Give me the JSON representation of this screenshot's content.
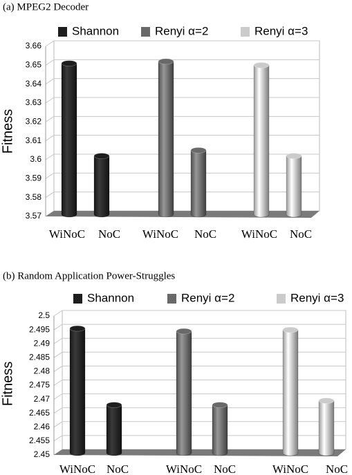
{
  "chart_data": [
    {
      "type": "bar",
      "title": "(a) MPEG2 Decoder",
      "ylabel": "Fitness",
      "categories": [
        "WiNoC",
        "NoC"
      ],
      "series": [
        {
          "name": "Shannon",
          "color": "#1e1e1e",
          "values": [
            3.651,
            3.602
          ]
        },
        {
          "name": "Renyi α=2",
          "color": "#696969",
          "values": [
            3.652,
            3.605
          ]
        },
        {
          "name": "Renyi α=3",
          "color": "#cbcbcb",
          "values": [
            3.65,
            3.602
          ]
        }
      ],
      "ylim": [
        3.57,
        3.66
      ],
      "yticks": [
        3.57,
        3.58,
        3.59,
        3.6,
        3.61,
        3.62,
        3.63,
        3.64,
        3.65,
        3.66
      ],
      "grid": true
    },
    {
      "type": "bar",
      "title": "(b) Random Application Power-Struggles",
      "ylabel": "Fitness",
      "categories": [
        "WiNoC",
        "NoC"
      ],
      "series": [
        {
          "name": "Shannon",
          "color": "#1e1e1e",
          "values": [
            2.4955,
            2.468
          ]
        },
        {
          "name": "Renyi α=2",
          "color": "#696969",
          "values": [
            2.4945,
            2.468
          ]
        },
        {
          "name": "Renyi α=3",
          "color": "#cbcbcb",
          "values": [
            2.495,
            2.4695
          ]
        }
      ],
      "ylim": [
        2.45,
        2.5
      ],
      "yticks": [
        2.45,
        2.455,
        2.46,
        2.465,
        2.47,
        2.475,
        2.48,
        2.485,
        2.49,
        2.495,
        2.5
      ],
      "grid": true
    }
  ]
}
